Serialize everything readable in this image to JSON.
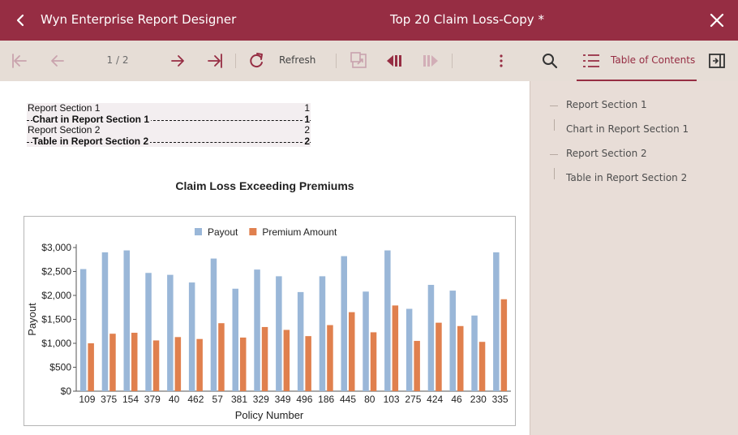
{
  "window": {
    "app_title": "Wyn Enterprise Report Designer",
    "doc_title": "Top 20 Claim Loss-Copy *",
    "accent": "#962d43"
  },
  "toolbar": {
    "page_indicator": "1 / 2",
    "refresh_label": "Refresh",
    "toc_tab_label": "Table of Contents",
    "icons": [
      "first-page-icon",
      "prev-page-icon",
      "next-page-icon",
      "last-page-icon",
      "refresh-icon",
      "export-icon",
      "step-back-icon",
      "step-forward-icon",
      "more-icon",
      "search-icon",
      "toc-icon",
      "sidebar-toggle-icon"
    ]
  },
  "report_toc": [
    {
      "title": "Report Section 1",
      "page": "1",
      "sub": false
    },
    {
      "title": "Chart in Report Section 1",
      "page": "1",
      "sub": true
    },
    {
      "title": "Report Section 2",
      "page": "2",
      "sub": false
    },
    {
      "title": "Table in Report Section 2",
      "page": "2",
      "sub": true
    }
  ],
  "sidebar": {
    "items": [
      {
        "label": "Report Section 1",
        "level": 0
      },
      {
        "label": "Chart in Report Section 1",
        "level": 1
      },
      {
        "label": "Report Section 2",
        "level": 0
      },
      {
        "label": "Table in Report Section 2",
        "level": 1
      }
    ]
  },
  "chart_data": {
    "type": "bar",
    "title": "Claim Loss Exceeding Premiums",
    "xlabel": "Policy Number",
    "ylabel": "Payout",
    "categories": [
      "109",
      "375",
      "154",
      "379",
      "40",
      "462",
      "57",
      "381",
      "329",
      "349",
      "496",
      "186",
      "445",
      "80",
      "103",
      "275",
      "424",
      "46",
      "230",
      "335"
    ],
    "series": [
      {
        "name": "Payout",
        "color": "#9ab7d8",
        "values": [
          2550,
          2900,
          2940,
          2470,
          2430,
          2270,
          2770,
          2140,
          2540,
          2400,
          2070,
          2400,
          2820,
          2080,
          2940,
          1720,
          2220,
          2100,
          1580,
          2900
        ]
      },
      {
        "name": "Premium Amount",
        "color": "#e0804e",
        "values": [
          1000,
          1200,
          1220,
          1060,
          1130,
          1090,
          1420,
          1120,
          1340,
          1280,
          1150,
          1380,
          1650,
          1230,
          1790,
          1050,
          1430,
          1360,
          1030,
          1920
        ]
      }
    ],
    "ylim": [
      0,
      3000
    ],
    "yticks": [
      "$0",
      "$500",
      "$1,000",
      "$1,500",
      "$2,000",
      "$2,500",
      "$3,000"
    ],
    "ytick_values": [
      0,
      500,
      1000,
      1500,
      2000,
      2500,
      3000
    ],
    "legend": "top-center",
    "grid": false
  }
}
